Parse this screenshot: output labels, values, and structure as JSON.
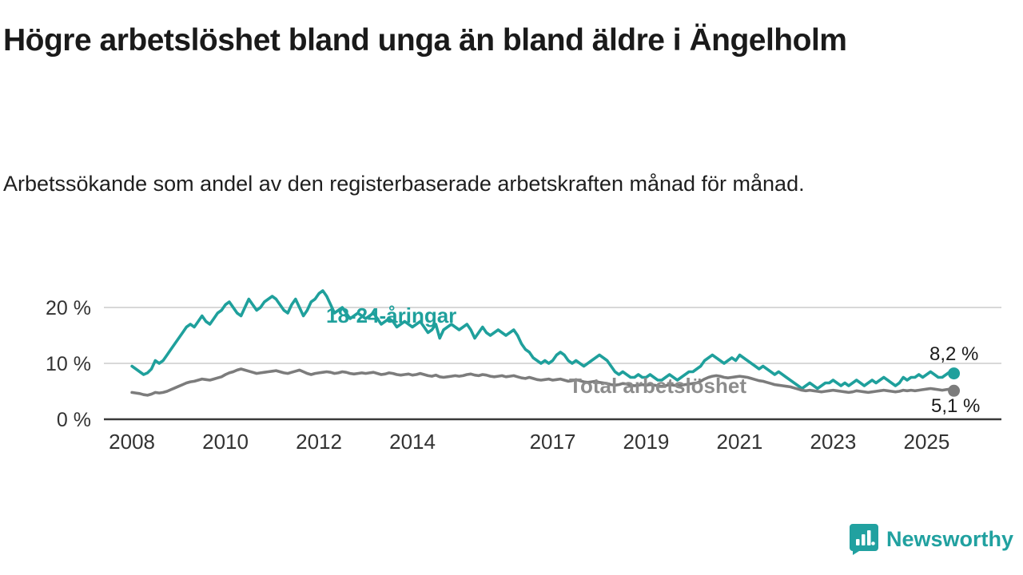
{
  "title": "Högre arbetslöshet bland unga än bland äldre i Ängelholm",
  "subtitle": "Arbetssökande som andel av den registerbaserade arbetskraften månad för månad.",
  "colors": {
    "accent_teal": "#1fa09c",
    "line_gray": "#7c7c7c",
    "grid": "#cccccc",
    "axis": "#3a3a3a",
    "text_dark": "#1a1a1a",
    "tick_text": "#333333"
  },
  "logo": {
    "text": "Newsworthy",
    "icon": "bar-chart-speech-bubble"
  },
  "chart_data": {
    "type": "line",
    "x_start_year": 2008,
    "x_start_month": 1,
    "x_ticks": [
      2008,
      2010,
      2012,
      2014,
      2017,
      2019,
      2021,
      2023,
      2025
    ],
    "y_ticks": [
      0,
      10,
      20
    ],
    "y_tick_suffix": " %",
    "xlim": [
      2007.4,
      2026.6
    ],
    "ylim": [
      0,
      25
    ],
    "grid": "horizontal-only",
    "legend_position": "inline-labels",
    "series": [
      {
        "name": "18-24-åringar",
        "color": "#1fa09c",
        "end_label": "8,2 %",
        "end_value": 8.2,
        "values": [
          9.5,
          9.0,
          8.5,
          8.0,
          8.3,
          9.0,
          10.5,
          10.0,
          10.5,
          11.5,
          12.5,
          13.5,
          14.5,
          15.5,
          16.5,
          17.0,
          16.5,
          17.5,
          18.5,
          17.5,
          17.0,
          18.0,
          19.0,
          19.5,
          20.5,
          21.0,
          20.0,
          19.0,
          18.5,
          20.0,
          21.5,
          20.5,
          19.5,
          20.0,
          21.0,
          21.5,
          22.0,
          21.5,
          20.5,
          19.5,
          19.0,
          20.5,
          21.5,
          20.0,
          18.5,
          19.5,
          21.0,
          21.5,
          22.5,
          23.0,
          22.0,
          20.5,
          19.0,
          19.5,
          20.0,
          19.0,
          18.0,
          18.5,
          19.0,
          18.5,
          18.0,
          18.5,
          19.0,
          18.0,
          17.0,
          17.5,
          18.0,
          17.5,
          16.5,
          17.0,
          17.5,
          17.0,
          16.5,
          17.0,
          17.5,
          16.5,
          15.5,
          16.0,
          17.0,
          14.5,
          16.0,
          16.5,
          17.0,
          16.5,
          16.0,
          16.5,
          17.0,
          16.0,
          14.5,
          15.5,
          16.5,
          15.5,
          15.0,
          15.5,
          16.0,
          15.5,
          15.0,
          15.5,
          16.0,
          15.0,
          13.5,
          12.5,
          12.0,
          11.0,
          10.5,
          10.0,
          10.5,
          10.0,
          10.5,
          11.5,
          12.0,
          11.5,
          10.5,
          10.0,
          10.5,
          10.0,
          9.5,
          10.0,
          10.5,
          11.0,
          11.5,
          11.0,
          10.5,
          9.5,
          8.5,
          8.0,
          8.5,
          8.0,
          7.5,
          7.5,
          8.0,
          7.5,
          7.5,
          8.0,
          7.5,
          7.0,
          7.0,
          7.5,
          8.0,
          7.5,
          7.0,
          7.5,
          8.0,
          8.5,
          8.5,
          9.0,
          9.5,
          10.5,
          11.0,
          11.5,
          11.0,
          10.5,
          10.0,
          10.5,
          11.0,
          10.5,
          11.5,
          11.0,
          10.5,
          10.0,
          9.5,
          9.0,
          9.5,
          9.0,
          8.5,
          8.0,
          8.5,
          8.0,
          7.5,
          7.0,
          6.5,
          6.0,
          5.5,
          6.0,
          6.5,
          6.0,
          5.5,
          6.0,
          6.5,
          6.5,
          7.0,
          6.5,
          6.0,
          6.5,
          6.0,
          6.5,
          7.0,
          6.5,
          6.0,
          6.5,
          7.0,
          6.5,
          7.0,
          7.5,
          7.0,
          6.5,
          6.0,
          6.5,
          7.5,
          7.0,
          7.5,
          7.5,
          8.0,
          7.5,
          8.0,
          8.5,
          8.0,
          7.5,
          7.5,
          8.0,
          8.5,
          8.2
        ]
      },
      {
        "name": "Total arbetslöshet",
        "color": "#7c7c7c",
        "end_label": "5,1 %",
        "end_value": 5.1,
        "values": [
          4.8,
          4.7,
          4.6,
          4.4,
          4.3,
          4.5,
          4.8,
          4.7,
          4.8,
          5.0,
          5.3,
          5.6,
          5.9,
          6.2,
          6.5,
          6.7,
          6.8,
          7.0,
          7.2,
          7.1,
          7.0,
          7.2,
          7.4,
          7.6,
          8.0,
          8.3,
          8.5,
          8.8,
          9.0,
          8.8,
          8.6,
          8.4,
          8.2,
          8.3,
          8.4,
          8.5,
          8.6,
          8.7,
          8.5,
          8.3,
          8.2,
          8.4,
          8.6,
          8.8,
          8.5,
          8.2,
          8.0,
          8.2,
          8.3,
          8.4,
          8.5,
          8.4,
          8.2,
          8.3,
          8.5,
          8.4,
          8.2,
          8.1,
          8.2,
          8.3,
          8.2,
          8.3,
          8.4,
          8.2,
          8.0,
          8.1,
          8.3,
          8.2,
          8.0,
          7.9,
          8.0,
          8.1,
          7.9,
          8.0,
          8.2,
          8.0,
          7.8,
          7.7,
          7.9,
          7.6,
          7.5,
          7.6,
          7.7,
          7.8,
          7.7,
          7.8,
          8.0,
          8.1,
          7.9,
          7.8,
          8.0,
          7.9,
          7.7,
          7.6,
          7.7,
          7.8,
          7.6,
          7.7,
          7.8,
          7.6,
          7.4,
          7.3,
          7.5,
          7.3,
          7.1,
          7.0,
          7.1,
          7.2,
          7.0,
          7.1,
          7.2,
          7.0,
          6.8,
          6.9,
          7.1,
          6.9,
          6.7,
          6.6,
          6.7,
          6.8,
          6.6,
          6.5,
          6.4,
          6.2,
          6.1,
          6.2,
          6.4,
          6.3,
          6.1,
          6.0,
          6.1,
          6.2,
          6.1,
          6.2,
          6.1,
          6.0,
          5.9,
          6.0,
          6.2,
          6.1,
          6.0,
          6.1,
          6.2,
          6.3,
          6.4,
          6.5,
          6.8,
          7.2,
          7.5,
          7.7,
          7.8,
          7.7,
          7.5,
          7.4,
          7.5,
          7.6,
          7.7,
          7.6,
          7.5,
          7.3,
          7.1,
          6.9,
          6.8,
          6.6,
          6.4,
          6.2,
          6.1,
          6.0,
          5.9,
          5.8,
          5.6,
          5.4,
          5.2,
          5.1,
          5.2,
          5.1,
          5.0,
          4.9,
          5.0,
          5.1,
          5.2,
          5.1,
          5.0,
          4.9,
          4.8,
          4.9,
          5.1,
          5.0,
          4.9,
          4.8,
          4.9,
          5.0,
          5.1,
          5.2,
          5.1,
          5.0,
          4.9,
          5.0,
          5.2,
          5.1,
          5.2,
          5.1,
          5.2,
          5.3,
          5.4,
          5.5,
          5.4,
          5.3,
          5.2,
          5.3,
          5.4,
          5.1
        ]
      }
    ]
  }
}
